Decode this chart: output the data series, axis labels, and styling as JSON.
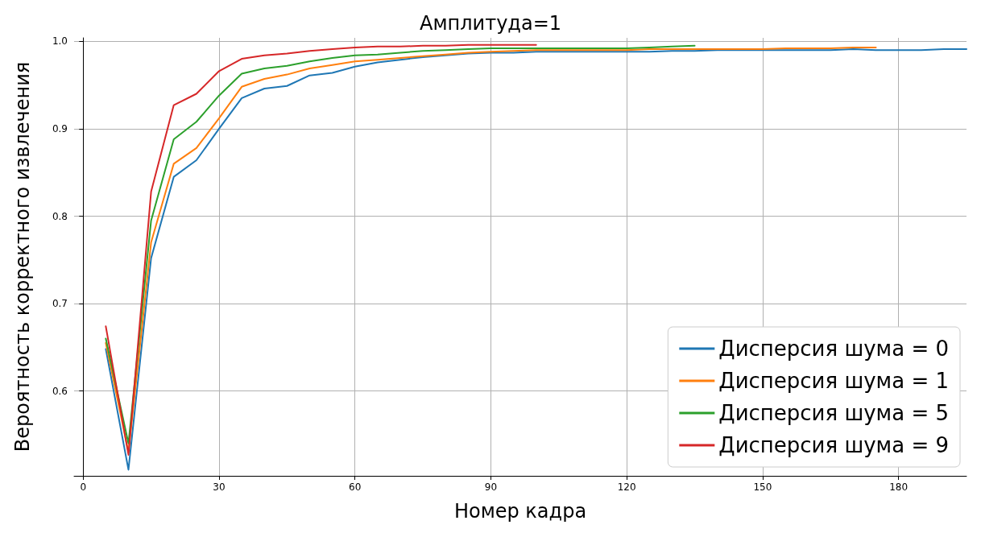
{
  "chart_data": {
    "type": "line",
    "title": "Амплитуда=1",
    "xlabel": "Номер кадра",
    "ylabel": "Вероятность корректного извлечения",
    "xlim": [
      -2,
      195
    ],
    "xticks": [
      0,
      30,
      60,
      90,
      120,
      150,
      180
    ],
    "ylim": [
      0.503,
      1.004
    ],
    "yticks": [
      {
        "value": 0.6,
        "label": "0.6"
      },
      {
        "value": 0.7,
        "label": "0.7"
      },
      {
        "value": 0.8,
        "label": "0.8"
      },
      {
        "value": 0.9,
        "label": "0.9"
      },
      {
        "value": 1.0,
        "label": "1.0"
      }
    ],
    "grid": true,
    "legend": "bottom right",
    "marker": "none",
    "line_style": "solid",
    "series": [
      {
        "name": "Дисперсия шума = 0",
        "color": "#1f77b4",
        "x": [
          5,
          10,
          15,
          20,
          25,
          30,
          35,
          40,
          45,
          50,
          55,
          60,
          65,
          70,
          75,
          80,
          85,
          90,
          95,
          100,
          105,
          110,
          115,
          120,
          125,
          130,
          135,
          140,
          145,
          150,
          155,
          160,
          165,
          170,
          175,
          180,
          185,
          190,
          195
        ],
        "values": [
          0.648,
          0.51,
          0.752,
          0.845,
          0.864,
          0.9,
          0.935,
          0.946,
          0.949,
          0.961,
          0.964,
          0.971,
          0.976,
          0.979,
          0.982,
          0.984,
          0.986,
          0.987,
          0.987,
          0.988,
          0.988,
          0.988,
          0.988,
          0.988,
          0.988,
          0.989,
          0.989,
          0.99,
          0.99,
          0.99,
          0.99,
          0.99,
          0.99,
          0.991,
          0.99,
          0.99,
          0.99,
          0.991,
          0.991
        ]
      },
      {
        "name": "Дисперсия шума = 1",
        "color": "#ff7f0e",
        "x": [
          5,
          10,
          15,
          20,
          25,
          30,
          35,
          40,
          45,
          50,
          55,
          60,
          65,
          70,
          75,
          80,
          85,
          90,
          95,
          100,
          105,
          110,
          115,
          120,
          125,
          130,
          135,
          140,
          145,
          150,
          155,
          160,
          165,
          170,
          175
        ],
        "values": [
          0.655,
          0.53,
          0.77,
          0.86,
          0.878,
          0.912,
          0.948,
          0.957,
          0.962,
          0.969,
          0.973,
          0.977,
          0.979,
          0.981,
          0.983,
          0.985,
          0.987,
          0.988,
          0.989,
          0.99,
          0.99,
          0.99,
          0.99,
          0.99,
          0.991,
          0.991,
          0.991,
          0.991,
          0.991,
          0.991,
          0.992,
          0.992,
          0.992,
          0.993,
          0.993
        ]
      },
      {
        "name": "Дисперсия шума = 5",
        "color": "#2ca02c",
        "x": [
          5,
          10,
          15,
          20,
          25,
          30,
          35,
          40,
          45,
          50,
          55,
          60,
          65,
          70,
          75,
          80,
          85,
          90,
          95,
          100,
          105,
          110,
          115,
          120,
          125,
          130,
          135
        ],
        "values": [
          0.66,
          0.54,
          0.795,
          0.888,
          0.908,
          0.938,
          0.963,
          0.969,
          0.972,
          0.977,
          0.981,
          0.984,
          0.985,
          0.987,
          0.989,
          0.99,
          0.991,
          0.992,
          0.992,
          0.992,
          0.992,
          0.992,
          0.992,
          0.992,
          0.993,
          0.994,
          0.995
        ]
      },
      {
        "name": "Дисперсия шума = 9",
        "color": "#d62728",
        "x": [
          5,
          10,
          15,
          20,
          25,
          30,
          35,
          40,
          45,
          50,
          55,
          60,
          65,
          70,
          75,
          80,
          85,
          90,
          95,
          100
        ],
        "values": [
          0.674,
          0.527,
          0.828,
          0.927,
          0.94,
          0.966,
          0.98,
          0.984,
          0.986,
          0.989,
          0.991,
          0.993,
          0.994,
          0.994,
          0.995,
          0.995,
          0.996,
          0.996,
          0.996,
          0.996
        ]
      }
    ]
  }
}
